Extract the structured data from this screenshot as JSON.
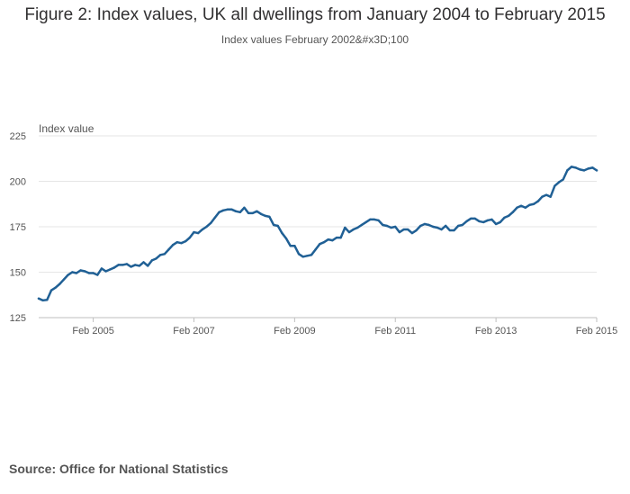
{
  "chart_data": {
    "type": "line",
    "title": "Figure 2: Index values, UK all dwellings from January 2004 to February 2015",
    "subtitle": "Index values February 2002&#x3D;100",
    "ylabel": "Index value",
    "xlabel": "",
    "ylim": [
      125,
      225
    ],
    "yticks": [
      125,
      150,
      175,
      200,
      225
    ],
    "xticks": [
      {
        "label": "Feb 2005",
        "index": 13
      },
      {
        "label": "Feb 2007",
        "index": 37
      },
      {
        "label": "Feb 2009",
        "index": 61
      },
      {
        "label": "Feb 2011",
        "index": 85
      },
      {
        "label": "Feb 2013",
        "index": 109
      },
      {
        "label": "Feb 2015",
        "index": 133
      }
    ],
    "x_start": "Jan 2004",
    "x_end": "Feb 2015",
    "grid": true,
    "color": "#206095",
    "series": [
      {
        "name": "UK all dwellings",
        "values": [
          135.5,
          134.5,
          134.8,
          140.0,
          141.5,
          143.5,
          146.0,
          148.5,
          150.0,
          149.5,
          151.0,
          150.5,
          149.5,
          149.5,
          148.5,
          152.0,
          150.5,
          151.5,
          152.5,
          154.0,
          154.0,
          154.5,
          153.0,
          154.0,
          153.5,
          155.5,
          153.5,
          156.5,
          157.5,
          159.5,
          160.0,
          162.5,
          165.0,
          166.5,
          166.0,
          167.0,
          169.0,
          172.0,
          171.5,
          173.5,
          175.0,
          177.0,
          180.0,
          183.0,
          184.0,
          184.5,
          184.5,
          183.5,
          183.0,
          185.5,
          182.5,
          182.5,
          183.5,
          182.0,
          181.0,
          180.5,
          176.0,
          175.5,
          171.5,
          168.5,
          164.5,
          164.5,
          160.0,
          158.5,
          159.0,
          159.5,
          162.5,
          165.5,
          166.5,
          168.0,
          167.5,
          169.0,
          169.0,
          174.5,
          172.0,
          173.5,
          174.5,
          176.0,
          177.5,
          179.0,
          179.0,
          178.5,
          176.0,
          175.5,
          174.5,
          175.0,
          172.0,
          173.5,
          173.5,
          171.5,
          173.0,
          175.5,
          176.5,
          176.0,
          175.0,
          174.5,
          173.5,
          175.5,
          173.0,
          173.0,
          175.5,
          176.0,
          178.0,
          179.5,
          179.5,
          178.0,
          177.5,
          178.5,
          179.0,
          176.5,
          177.5,
          180.0,
          181.0,
          183.0,
          185.5,
          186.5,
          185.5,
          187.0,
          187.5,
          189.0,
          191.5,
          192.5,
          191.5,
          197.5,
          199.5,
          201.0,
          206.0,
          208.0,
          207.5,
          206.5,
          206.0,
          207.0,
          207.5,
          206.0
        ]
      }
    ]
  },
  "source": {
    "text": "Source: Office for National Statistics"
  }
}
